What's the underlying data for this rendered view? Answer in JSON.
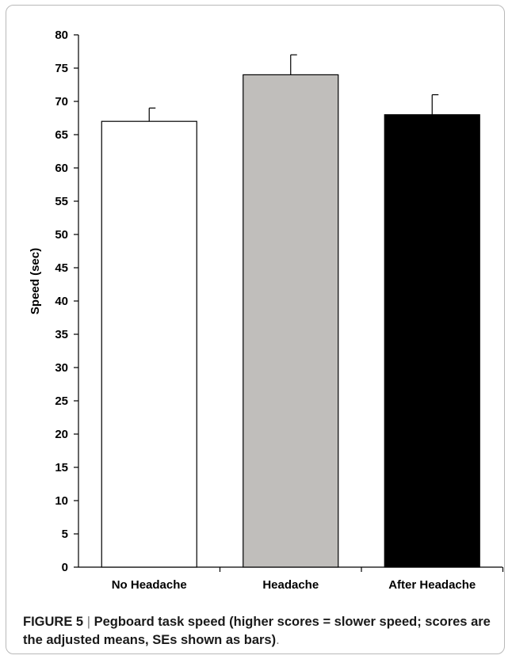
{
  "chart_data": {
    "type": "bar",
    "categories": [
      "No Headache",
      "Headache",
      "After Headache"
    ],
    "values": [
      67,
      74,
      68
    ],
    "errors": [
      2,
      3,
      3
    ],
    "colors": [
      "#ffffff",
      "#c0bebb",
      "#000000"
    ],
    "ylabel": "Speed (sec)",
    "xlabel": "",
    "ylim": [
      0,
      80
    ],
    "yticks": [
      0,
      5,
      10,
      15,
      20,
      25,
      30,
      35,
      40,
      45,
      50,
      55,
      60,
      65,
      70,
      75,
      80
    ],
    "grid": false
  },
  "caption": {
    "label": "FIGURE 5",
    "separator": "|",
    "text": "Pegboard task speed (higher scores = slower speed; scores are the adjusted means, SEs shown as bars)",
    "end": "."
  }
}
